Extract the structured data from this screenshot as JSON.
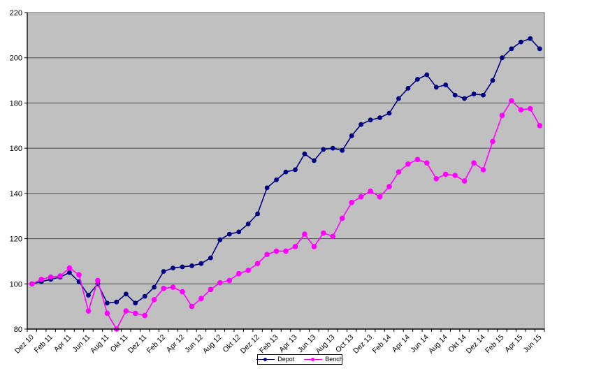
{
  "chart_data": {
    "type": "line",
    "title": "",
    "xlabel": "",
    "ylabel": "",
    "n_points": 55,
    "x_label_every_n_points": 2,
    "x_tick_labels": [
      "Dez 10",
      "Feb 11",
      "Apr 11",
      "Jun 11",
      "Aug 11",
      "Okt 11",
      "Dez 11",
      "Feb 12",
      "Apr 12",
      "Jun 12",
      "Aug 12",
      "Okt 12",
      "Dez 12",
      "Feb 13",
      "Apr 13",
      "Jun 13",
      "Aug 13",
      "Oct 13",
      "Dez 13",
      "Feb 14",
      "Apr 14",
      "Jun 14",
      "Aug 14",
      "Okt 14",
      "Dez 14",
      "Feb 15",
      "Apr 15",
      "Jun 15"
    ],
    "ylim": [
      80,
      220
    ],
    "y_ticks": [
      80,
      100,
      120,
      140,
      160,
      180,
      200,
      220
    ],
    "grid": true,
    "legend_position": "bottom-center",
    "colors": {
      "page_background": "#ffffff",
      "plot_background": "#c0c0c0",
      "gridline": "#4d4d4d",
      "plot_border": "#666666",
      "axis": "#000000",
      "text": "#000000",
      "legend_border": "#000000",
      "legend_background": "#ffffff"
    },
    "series": [
      {
        "name": "Depot",
        "color": "#000080",
        "values": [
          100,
          101,
          102,
          103,
          105,
          101,
          95,
          100,
          91.5,
          92,
          95.5,
          91.5,
          94.5,
          98.5,
          105.5,
          107,
          107.5,
          108,
          109,
          111.5,
          119.5,
          122,
          123,
          126.5,
          131,
          142.5,
          146,
          149.5,
          150.5,
          157.5,
          154.5,
          159.5,
          160,
          159,
          165.5,
          170.5,
          172.5,
          173.5,
          175.5,
          182,
          186.5,
          190.5,
          192.5,
          187,
          188,
          183.5,
          182,
          184,
          183.5,
          190,
          200,
          204,
          207,
          208.5,
          204
        ]
      },
      {
        "name": "Bench",
        "color": "#ff00ff",
        "values": [
          100,
          102,
          103,
          103.5,
          107,
          104,
          88,
          101.5,
          87,
          80,
          88,
          87,
          86,
          93,
          98,
          98.5,
          96.5,
          90,
          93.5,
          97.5,
          100.5,
          101.5,
          104.5,
          106,
          109,
          113,
          114.5,
          114.5,
          116.5,
          122,
          116.5,
          122.5,
          121,
          129,
          136,
          138.5,
          141,
          138.5,
          143,
          149.5,
          153,
          155,
          153.5,
          146.5,
          148.5,
          148,
          145.5,
          153.5,
          150.5,
          163,
          174.5,
          181,
          177,
          177.5,
          170
        ]
      }
    ]
  }
}
